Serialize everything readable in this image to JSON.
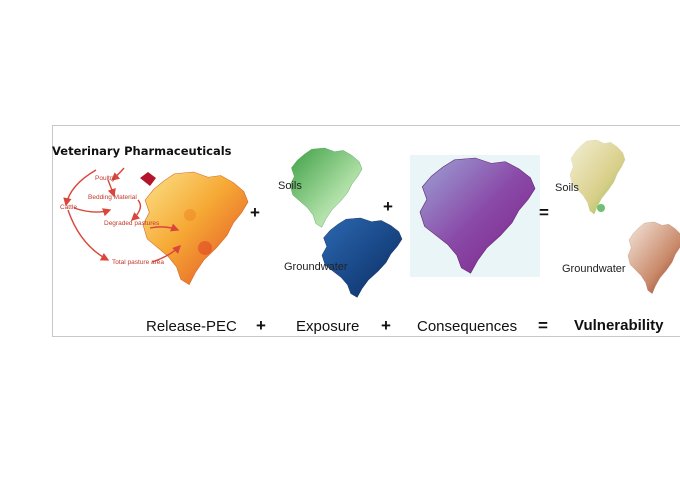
{
  "title": "Veterinary Pharmaceuticals",
  "flow_labels": {
    "poultry": "Poultry",
    "cattle": "Cattle",
    "bedding": "Bedding Material",
    "degraded": "Degraded pastures",
    "total": "Total pasture area"
  },
  "maps": {
    "soils_label": "Soils",
    "groundwater_label": "Groundwater",
    "result_soils_label": "Soils",
    "result_groundwater_label": "Groundwater"
  },
  "operators": {
    "plus": "+",
    "equals": "="
  },
  "equation": {
    "release": "Release-PEC",
    "exposure": "Exposure",
    "consequences": "Consequences",
    "vulnerability": "Vulnerability"
  },
  "colors": {
    "release_map": "#f5a623",
    "soils_map": "#4caf50",
    "groundwater_map": "#1f4e8c",
    "consequence_map": "#8e3a9d",
    "consequence_bg": "#eaf5f8",
    "arrow": "#d9463b"
  }
}
